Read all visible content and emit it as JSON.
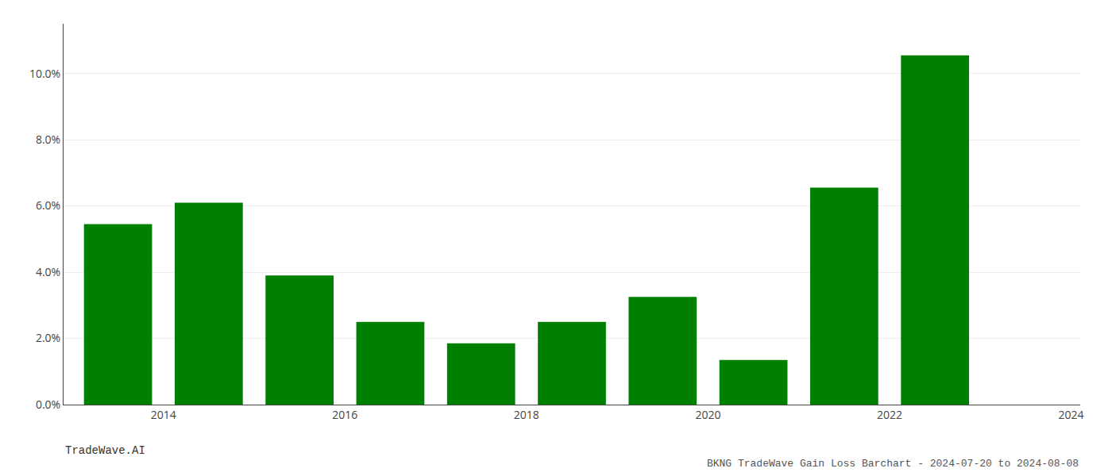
{
  "chart_data": {
    "type": "bar",
    "title": "BKNG TradeWave Gain Loss Barchart - 2024-07-20 to 2024-08-08",
    "annotations": [
      "TradeWave.AI"
    ],
    "x": [
      2014,
      2015,
      2016,
      2017,
      2018,
      2019,
      2020,
      2021,
      2022,
      2023
    ],
    "values": [
      0.0545,
      0.061,
      0.039,
      0.025,
      0.0185,
      0.025,
      0.0325,
      0.0135,
      0.0655,
      0.1055
    ],
    "color": "#008000",
    "xlim": [
      2013.4,
      2024.6
    ],
    "xticks": [
      {
        "value": 2014.5,
        "label": "2014"
      },
      {
        "value": 2016.5,
        "label": "2016"
      },
      {
        "value": 2018.5,
        "label": "2018"
      },
      {
        "value": 2020.5,
        "label": "2020"
      },
      {
        "value": 2022.5,
        "label": "2022"
      },
      {
        "value": 2024.5,
        "label": "2024"
      }
    ],
    "ylim": [
      0,
      0.115
    ],
    "yticks": [
      {
        "value": 0.0,
        "label": "0.0%"
      },
      {
        "value": 0.02,
        "label": "2.0%"
      },
      {
        "value": 0.04,
        "label": "4.0%"
      },
      {
        "value": 0.06,
        "label": "6.0%"
      },
      {
        "value": 0.08,
        "label": "8.0%"
      },
      {
        "value": 0.1,
        "label": "10.0%"
      }
    ],
    "grid": true
  }
}
